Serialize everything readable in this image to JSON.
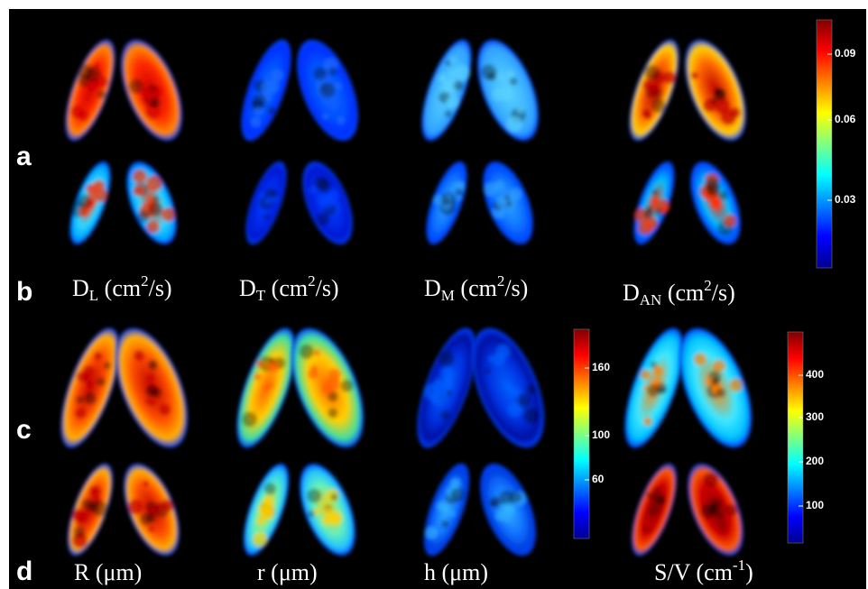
{
  "figure": {
    "row_letters": [
      "a",
      "b",
      "c",
      "d"
    ],
    "labels": [
      {
        "base": "D",
        "sub": "L",
        "text": " (cm",
        "sup": "2",
        "tail": "/s)"
      },
      {
        "base": "D",
        "sub": "T",
        "text": " (cm",
        "sup": "2",
        "tail": "/s)"
      },
      {
        "base": "D",
        "sub": "M",
        "text": " (cm",
        "sup": "2",
        "tail": "/s)"
      },
      {
        "base": "D",
        "sub": "AN",
        "text": " (cm",
        "sup": "2",
        "tail": "/s)"
      },
      {
        "text": "R (μm)"
      },
      {
        "text": "r (μm)"
      },
      {
        "text": "h (μm)"
      },
      {
        "text": "S/V (cm",
        "sup": "-1",
        "tail": ")"
      }
    ],
    "colorbars": [
      {
        "ticks": [
          0.09,
          0.06,
          0.03
        ]
      },
      {
        "ticks": [
          160,
          100,
          60
        ]
      },
      {
        "ticks": [
          400,
          300,
          200,
          100
        ]
      }
    ]
  }
}
